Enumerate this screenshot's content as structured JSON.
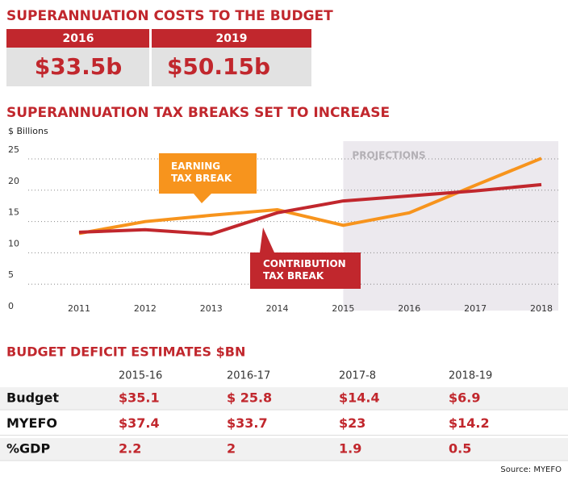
{
  "header": {
    "title": "SUPERANNUATION COSTS TO THE BUDGET",
    "columns": [
      "2016",
      "2019"
    ],
    "values": [
      "$33.5b",
      "$50.15b"
    ]
  },
  "chart_data": {
    "type": "line",
    "title": "SUPERANNUATION TAX BREAKS SET TO INCREASE",
    "y_label": "$ Billions",
    "x": [
      2011,
      2012,
      2013,
      2014,
      2015,
      2016,
      2017,
      2018
    ],
    "series": [
      {
        "name": "EARNING TAX BREAK",
        "color": "#f7941d",
        "values": [
          11.8,
          13.7,
          14.7,
          15.6,
          13.1,
          15.1,
          19.5,
          23.8
        ]
      },
      {
        "name": "CONTRIBUTION TAX BREAK",
        "color": "#c1272d",
        "values": [
          12.0,
          12.4,
          11.7,
          15.1,
          17.0,
          17.8,
          18.6,
          19.6
        ]
      }
    ],
    "xlim": [
      2011,
      2018
    ],
    "xticks": [
      2011,
      2012,
      2013,
      2014,
      2015,
      2016,
      2017,
      2018
    ],
    "ylim": [
      0,
      25
    ],
    "yticks": [
      0,
      5,
      10,
      15,
      20,
      25
    ],
    "grid": true,
    "shade_from": 2015,
    "shade_label": "PROJECTIONS"
  },
  "table": {
    "title": "BUDGET DEFICIT ESTIMATES $BN",
    "columns": [
      "2015-16",
      "2016-17",
      "2017-8",
      "2018-19"
    ],
    "rows": [
      [
        "Budget",
        "$35.1",
        "$ 25.8",
        "$14.4",
        "$6.9"
      ],
      [
        "MYEFO",
        "$37.4",
        "$33.7",
        "$23",
        "$14.2"
      ],
      [
        "%GDP",
        "2.2",
        "2",
        "1.9",
        "0.5"
      ]
    ],
    "source": "Source: MYEFO"
  }
}
